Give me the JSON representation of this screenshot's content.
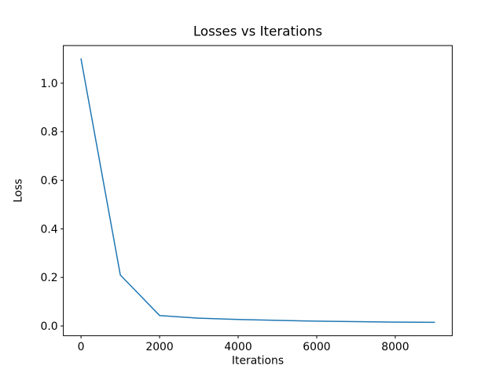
{
  "chart_data": {
    "type": "line",
    "title": "Losses vs Iterations",
    "xlabel": "Iterations",
    "ylabel": "Loss",
    "x": [
      0,
      1000,
      2000,
      3000,
      4000,
      5000,
      6000,
      7000,
      8000,
      9000
    ],
    "y": [
      1.1,
      0.21,
      0.043,
      0.032,
      0.027,
      0.023,
      0.02,
      0.018,
      0.016,
      0.015
    ],
    "xlim": [
      -450,
      9450
    ],
    "ylim": [
      -0.04,
      1.155
    ],
    "xticks": {
      "values": [
        0,
        2000,
        4000,
        6000,
        8000
      ],
      "labels": [
        "0",
        "2000",
        "4000",
        "6000",
        "8000"
      ]
    },
    "yticks": {
      "values": [
        0.0,
        0.2,
        0.4,
        0.6,
        0.8,
        1.0
      ],
      "labels": [
        "0.0",
        "0.2",
        "0.4",
        "0.6",
        "0.8",
        "1.0"
      ]
    },
    "grid": false,
    "legend": "none",
    "line_color": "#1f77b4",
    "line_width": 1.5,
    "background_color": "#ffffff",
    "spine_color": "#000000",
    "text_color": "#000000"
  }
}
